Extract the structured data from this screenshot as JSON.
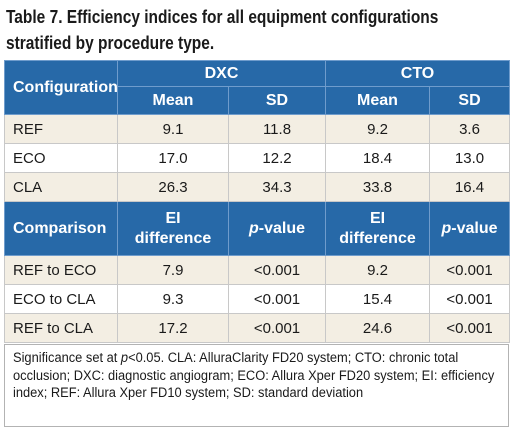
{
  "title": {
    "line1": "Table 7. Efficiency indices for all equipment configurations",
    "line2": "stratified by procedure type."
  },
  "header": {
    "configuration": "Configuration",
    "dxc": "DXC",
    "cto": "CTO",
    "mean": "Mean",
    "sd": "SD"
  },
  "configs": [
    {
      "name": "REF",
      "dxc_mean": "9.1",
      "dxc_sd": "11.8",
      "cto_mean": "9.2",
      "cto_sd": "3.6"
    },
    {
      "name": "ECO",
      "dxc_mean": "17.0",
      "dxc_sd": "12.2",
      "cto_mean": "18.4",
      "cto_sd": "13.0"
    },
    {
      "name": "CLA",
      "dxc_mean": "26.3",
      "dxc_sd": "34.3",
      "cto_mean": "33.8",
      "cto_sd": "16.4"
    }
  ],
  "comparison_header": {
    "comparison": "Comparison",
    "ei_line1": "EI",
    "ei_line2": "difference",
    "p_italic": "p",
    "p_rest": "-value"
  },
  "comparisons": [
    {
      "name": "REF to ECO",
      "dxc_diff": "7.9",
      "dxc_p": "<0.001",
      "cto_diff": "9.2",
      "cto_p": "<0.001"
    },
    {
      "name": "ECO to CLA",
      "dxc_diff": "9.3",
      "dxc_p": "<0.001",
      "cto_diff": "15.4",
      "cto_p": "<0.001"
    },
    {
      "name": "REF to CLA",
      "dxc_diff": "17.2",
      "dxc_p": "<0.001",
      "cto_diff": "24.6",
      "cto_p": "<0.001"
    }
  ],
  "footnote": {
    "pre": "Significance set at ",
    "p_italic": "p",
    "post": "<0.05. CLA: AlluraClarity FD20 system; CTO: chronic total occlusion; DXC: diagnostic angiogram; ECO: Allura Xper FD20 system; EI: efficiency index; REF: Allura Xper FD10 system; SD: standard deviation"
  },
  "colors": {
    "header_blue": "#2769a8",
    "row_tint": "#f3eee3"
  }
}
